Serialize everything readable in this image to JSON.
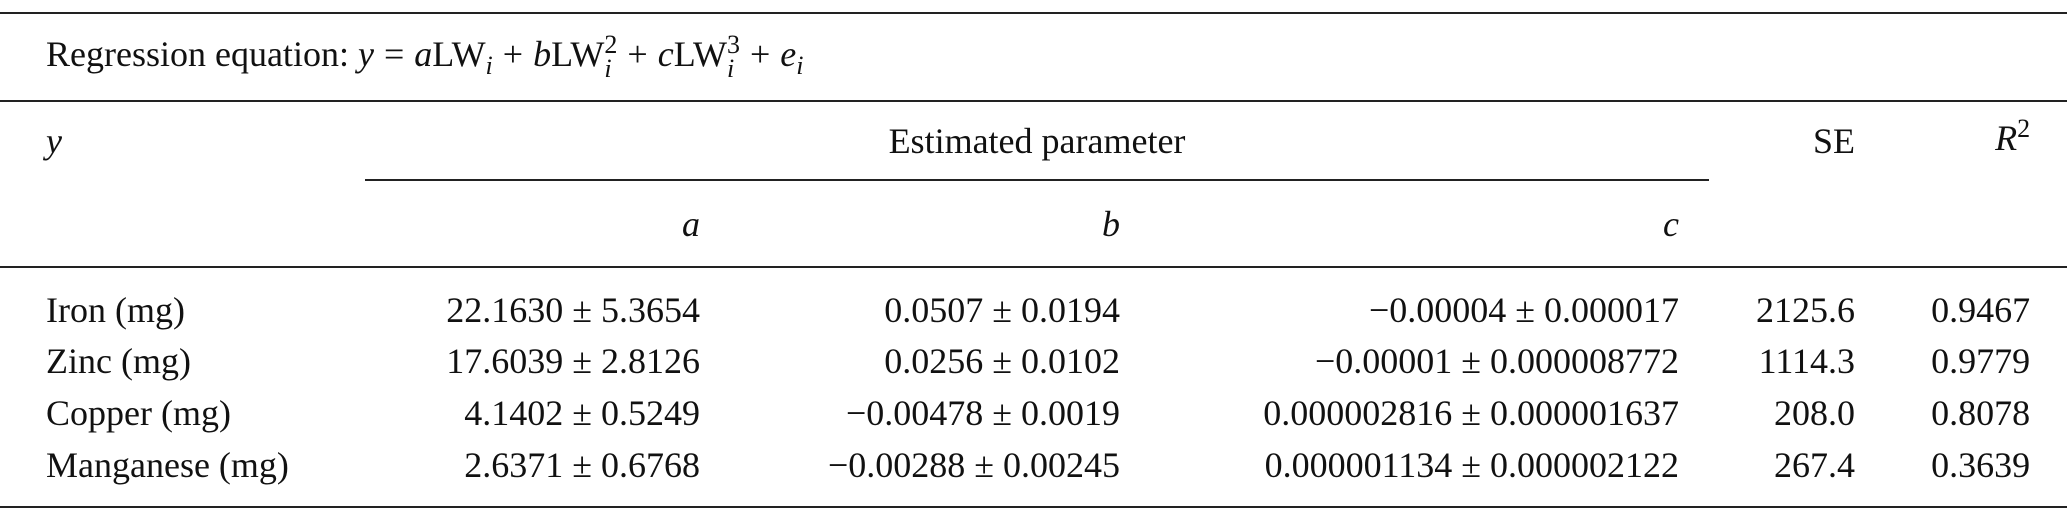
{
  "caption": {
    "parts": [
      "Regression equation:",
      "y",
      "=",
      "a",
      "LW",
      "i",
      "+",
      "b",
      "LW",
      "2",
      "i",
      "+",
      "c",
      "LW",
      "3",
      "i",
      "+",
      "e",
      "i"
    ]
  },
  "table": {
    "header": {
      "y": "y",
      "group": "Estimated parameter",
      "se": "SE",
      "r2": [
        "R",
        "2"
      ],
      "params": [
        "a",
        "b",
        "c"
      ]
    },
    "rows": [
      [
        "Iron (mg)",
        "22.1630 ± 5.3654",
        "0.0507 ± 0.0194",
        "−0.00004 ± 0.000017",
        "2125.6",
        "0.9467"
      ],
      [
        "Zinc (mg)",
        "17.6039 ± 2.8126",
        "0.0256 ± 0.0102",
        "−0.00001 ± 0.000008772",
        "1114.3",
        "0.9779"
      ],
      [
        "Copper (mg)",
        "4.1402 ± 0.5249",
        "−0.00478 ± 0.0019",
        "0.000002816 ± 0.000001637",
        "208.0",
        "0.8078"
      ],
      [
        "Manganese (mg)",
        "2.6371 ± 0.6768",
        "−0.00288 ± 0.00245",
        "0.000001134 ± 0.000002122",
        "267.4",
        "0.3639"
      ]
    ]
  }
}
